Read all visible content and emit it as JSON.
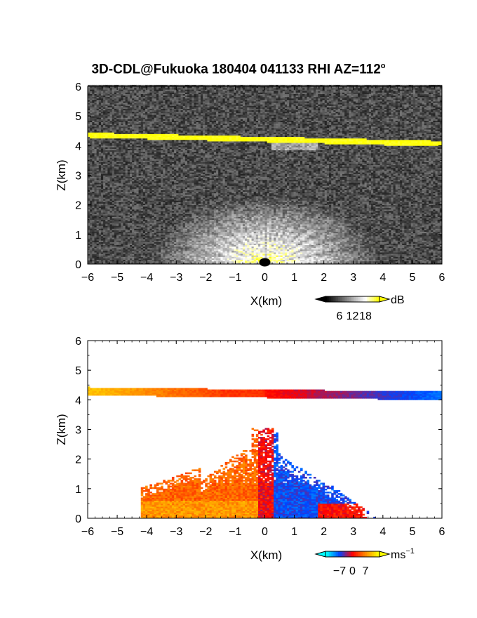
{
  "figure": {
    "title": "3D-CDL@Fukuoka 180404 041133 RHI AZ=112",
    "title_sup": "o"
  },
  "chart_data": [
    {
      "type": "heatmap",
      "name": "reflectivity",
      "xlabel": "X(km)",
      "ylabel": "Z(km)",
      "xlim": [
        -6,
        6
      ],
      "ylim": [
        0,
        6
      ],
      "xticks": [
        -6,
        -5,
        -4,
        -3,
        -2,
        -1,
        0,
        1,
        2,
        3,
        4,
        5,
        6
      ],
      "yticks": [
        0,
        1,
        2,
        3,
        4,
        5,
        6
      ],
      "colorbar": {
        "unit": "dB",
        "unit_sup": "",
        "ticks": [
          6,
          12,
          18
        ],
        "colors": [
          "#000000",
          "#555555",
          "#aaaaaa",
          "#ffffff",
          "#ffff00"
        ]
      },
      "features": {
        "cloud_layer": {
          "base_km": [
            4.3,
            4.0
          ],
          "top_km": [
            4.38,
            4.1
          ],
          "value_db": 19
        },
        "clear_air_echo_top_km": 2.5,
        "background_noise_db": 2
      }
    },
    {
      "type": "heatmap",
      "name": "doppler_velocity",
      "xlabel": "X(km)",
      "ylabel": "Z(km)",
      "xlim": [
        -6,
        6
      ],
      "ylim": [
        0,
        6
      ],
      "xticks": [
        -6,
        -5,
        -4,
        -3,
        -2,
        -1,
        0,
        1,
        2,
        3,
        4,
        5,
        6
      ],
      "yticks": [
        0,
        1,
        2,
        3,
        4,
        5,
        6
      ],
      "colorbar": {
        "unit": "ms",
        "unit_sup": "−1",
        "ticks": [
          -7,
          0,
          7
        ],
        "colors": [
          "#00ffff",
          "#0044ff",
          "#ff0000",
          "#ff8800",
          "#ffff00"
        ]
      },
      "features": {
        "cloud_layer": {
          "base_km": [
            4.13,
            3.97
          ],
          "top_km": [
            4.4,
            4.25
          ],
          "velocity_left_ms": 6,
          "velocity_right_ms": -5
        },
        "boundary_layer": {
          "left_extent_km": -4.2,
          "right_extent_km": 3.7,
          "velocity_left_ms": 3,
          "velocity_right_ms": -4
        },
        "echo_top_near_origin_km": 3.0
      }
    }
  ]
}
